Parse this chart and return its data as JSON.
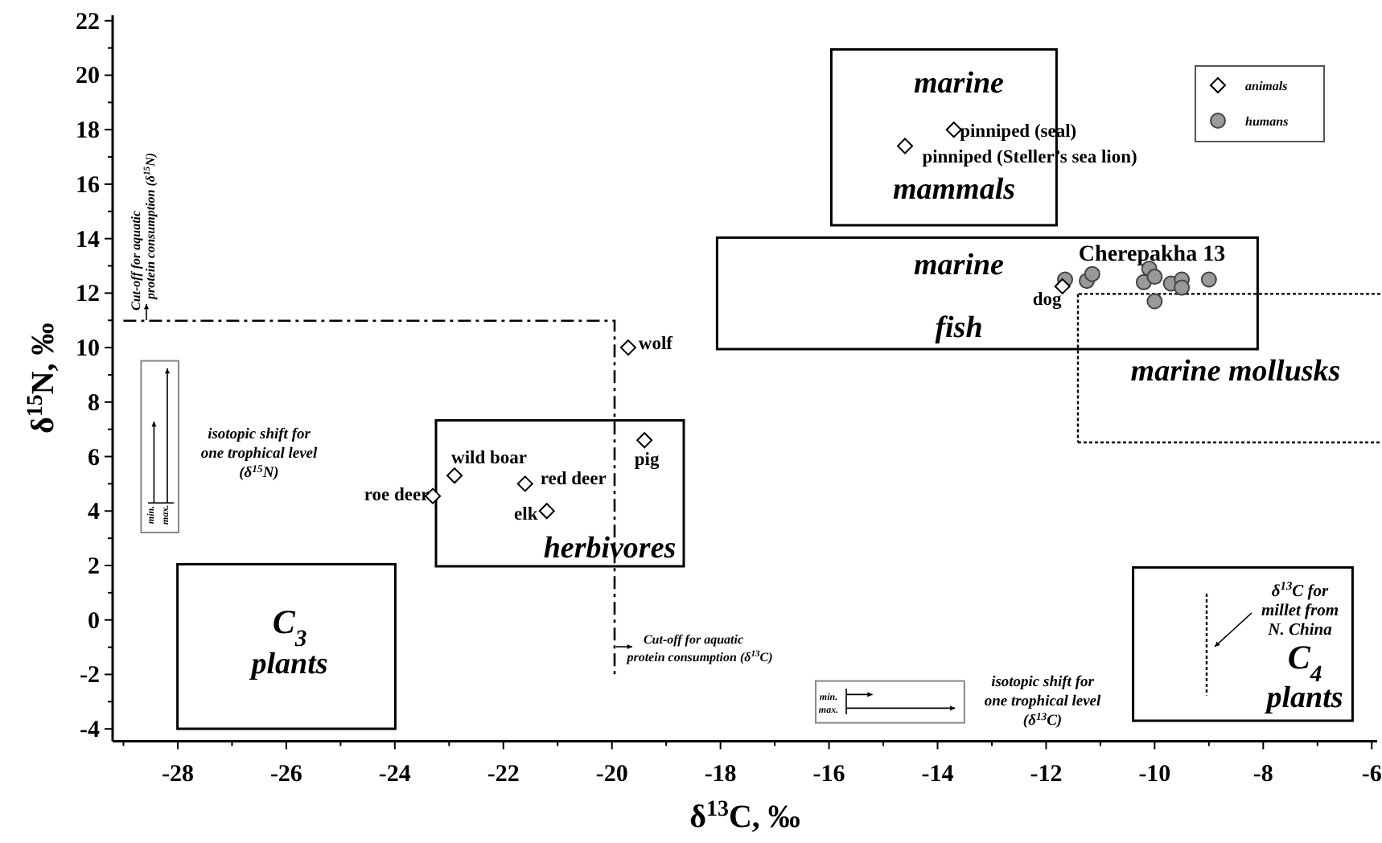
{
  "chart_data": {
    "type": "scatter",
    "xlabel": "δ$^{13}$C, ‰",
    "ylabel": "δ$^{15}$N, ‰",
    "xlim": [
      -29.2,
      -5.9
    ],
    "ylim": [
      -4.45,
      22.2
    ],
    "xticks": [
      {
        "value": -29,
        "label": null
      },
      -28,
      {
        "value": -27,
        "label": null
      },
      -26,
      {
        "value": -25,
        "label": null
      },
      -24,
      {
        "value": -23,
        "label": null
      },
      -22,
      {
        "value": -21,
        "label": null
      },
      -20,
      {
        "value": -19,
        "label": null
      },
      -18,
      {
        "value": -17,
        "label": null
      },
      -16,
      {
        "value": -15,
        "label": null
      },
      -14,
      {
        "value": -13,
        "label": null
      },
      -12,
      {
        "value": -11,
        "label": null
      },
      -10,
      {
        "value": -9,
        "label": null
      },
      -8,
      {
        "value": -7,
        "label": null
      },
      -6
    ],
    "yticks": [
      -4,
      {
        "value": -3,
        "label": null
      },
      -2,
      {
        "value": -1,
        "label": null
      },
      0,
      {
        "value": 1,
        "label": null
      },
      2,
      {
        "value": 3,
        "label": null
      },
      4,
      {
        "value": 5,
        "label": null
      },
      6,
      {
        "value": 7,
        "label": null
      },
      8,
      {
        "value": 9,
        "label": null
      },
      10,
      {
        "value": 11,
        "label": null
      },
      12,
      {
        "value": 13,
        "label": null
      },
      14,
      {
        "value": 15,
        "label": null
      },
      16,
      {
        "value": 17,
        "label": null
      },
      18,
      {
        "value": 19,
        "label": null
      },
      20,
      {
        "value": 21,
        "label": null
      },
      22
    ],
    "grid": false,
    "legend": "top right",
    "series": [
      {
        "name": "animals",
        "color": "#000000",
        "marker": "diamond",
        "x": [
          -19.7,
          -19.4,
          -22.9,
          -21.6,
          -21.2,
          -23.3,
          -13.7,
          -14.6,
          -11.7
        ],
        "values": [
          10.0,
          6.6,
          5.3,
          5.0,
          4.0,
          4.55,
          18.0,
          17.4,
          12.25
        ]
      },
      {
        "name": "humans",
        "color": "#999999",
        "marker": "circle",
        "x": [
          -11.65,
          -11.25,
          -11.15,
          -10.1,
          -10.2,
          -10.0,
          -10.0,
          -9.7,
          -9.5,
          -9.5,
          -9.0
        ],
        "values": [
          12.5,
          12.45,
          12.7,
          12.9,
          12.4,
          12.6,
          11.7,
          12.35,
          12.5,
          12.2,
          12.5
        ]
      }
    ],
    "annotations": [
      "marine",
      "mammals",
      "marine",
      "fish",
      "marine mollusks",
      "herbivores",
      "C$_{3}$",
      "plants",
      "C$_{4}$",
      "plants",
      "Cherepakha 13",
      {
        "text": "wolf",
        "x": -19.7,
        "y": 10.0
      },
      {
        "text": "pig",
        "x": -19.4,
        "y": 6.6
      },
      {
        "text": "wild boar",
        "x": -22.9,
        "y": 5.3
      },
      {
        "text": "red deer",
        "x": -21.6,
        "y": 5.0
      },
      {
        "text": "elk",
        "x": -21.2,
        "y": 4.0
      },
      {
        "text": "roe deer",
        "x": -23.3,
        "y": 4.55
      },
      {
        "text": "pinniped (seal)",
        "x": -13.7,
        "y": 18.0
      },
      {
        "text": "pinniped (Steller’s sea lion)",
        "x": -14.6,
        "y": 17.4
      },
      {
        "text": "dog",
        "x": -11.7,
        "y": 12.25
      },
      "Cut-off for aquatic",
      "protein consumption (δ$^{15}$N)",
      "isotopic shift for",
      "one trophical level",
      "(δ$^{15}$N)",
      "Cut-off for aquatic",
      "protein consumption (δ$^{13}$C)",
      "isotopic shift for",
      "one trophical level",
      "(δ$^{13}$C)",
      "δ$^{13}$C for",
      "millet from",
      "N. China",
      "min.",
      "max.",
      "min.",
      "max."
    ]
  }
}
